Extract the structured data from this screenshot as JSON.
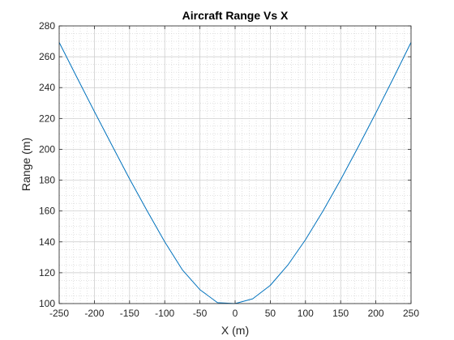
{
  "chart_data": {
    "type": "line",
    "title": "Aircraft Range Vs X",
    "xlabel": "X (m)",
    "ylabel": "Range (m)",
    "xlim": [
      -250,
      250
    ],
    "ylim": [
      100,
      280
    ],
    "xticks": [
      -250,
      -200,
      -150,
      -100,
      -50,
      0,
      50,
      100,
      150,
      200,
      250
    ],
    "yticks": [
      100,
      120,
      140,
      160,
      180,
      200,
      220,
      240,
      260,
      280
    ],
    "grid": "major and minor",
    "series": [
      {
        "color": "#0072BD",
        "x": [
          -250,
          -225,
          -200,
          -175,
          -150,
          -125,
          -100,
          -75,
          -50,
          -25,
          0,
          25,
          50,
          75,
          100,
          125,
          150,
          175,
          200,
          225,
          250
        ],
        "values": [
          269.3,
          246.8,
          224.5,
          202.6,
          180.8,
          160.1,
          140.0,
          121.9,
          109.0,
          100.6,
          100.0,
          103.1,
          111.8,
          125.0,
          141.4,
          160.1,
          180.3,
          201.6,
          223.6,
          246.2,
          269.3
        ]
      }
    ]
  }
}
